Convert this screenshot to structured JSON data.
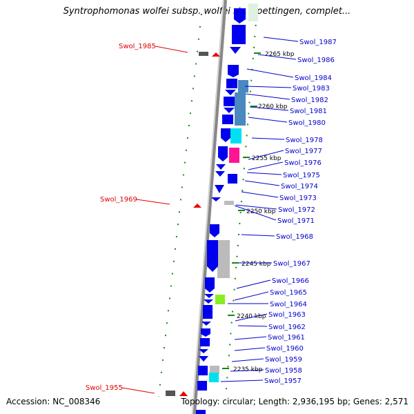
{
  "title": "Syntrophomonas wolfei subsp. wolfei str. Goettingen, complet...",
  "footer": {
    "accession": "Accession: NC_008346",
    "topology": "Topology: circular; Length: 2,936,195 bp; Genes: 2,571"
  },
  "kbp_marks": [
    "2265 kbp",
    "2260 kbp",
    "2255 kbp",
    "2250 kbp",
    "2245 kbp",
    "2240 kbp",
    "2235 kbp"
  ],
  "right_labels": [
    "Swol_1987",
    "Swol_1986",
    "Swol_1984",
    "Swol_1983",
    "Swol_1982",
    "Swol_1981",
    "Swol_1980",
    "Swol_1978",
    "Swol_1977",
    "Swol_1976",
    "Swol_1975",
    "Swol_1974",
    "Swol_1973",
    "Swol_1972",
    "Swol_1971",
    "Swol_1968",
    "Swol_1967",
    "Swol_1966",
    "Swol_1965",
    "Swol_1964",
    "Swol_1963",
    "Swol_1962",
    "Swol_1961",
    "Swol_1960",
    "Swol_1959",
    "Swol_1958",
    "Swol_1957"
  ],
  "left_labels": [
    "Swol_1985",
    "Swol_1969",
    "Swol_1955"
  ],
  "colors": {
    "gene_forward": "#0000ee",
    "label_blue": "#0000cc",
    "label_red": "#dd0000",
    "backbone": "#999999",
    "tick_green": "#118811",
    "cyan": "#00e0f0",
    "magenta": "#ff1493",
    "steel_blue": "#4a88c0",
    "lime": "#88ee22",
    "gray_feature": "#bbbbbb"
  }
}
